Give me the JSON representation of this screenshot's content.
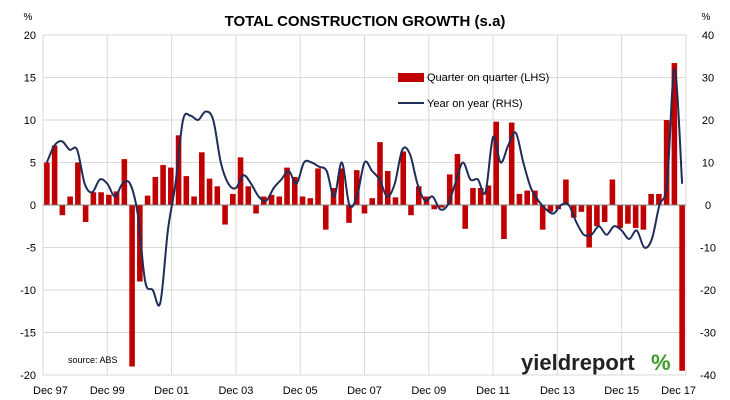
{
  "chart_data": {
    "type": "bar",
    "title": "TOTAL CONSTRUCTION GROWTH (s.a)",
    "left_unit": "%",
    "right_unit": "%",
    "ylim_left": [
      -20,
      20
    ],
    "ylim_right": [
      -40,
      40
    ],
    "left_ticks": [
      "20",
      "15",
      "10",
      "5",
      "0",
      "-5",
      "-10",
      "-15",
      "-20"
    ],
    "right_ticks": [
      "40",
      "30",
      "20",
      "10",
      "0",
      "-10",
      "-20",
      "-30",
      "-40"
    ],
    "x_tick_labels": [
      "Dec 97",
      "Dec 99",
      "Dec 01",
      "Dec 03",
      "Dec 05",
      "Dec 07",
      "Dec 09",
      "Dec 11",
      "Dec 13",
      "Dec 15",
      "Dec 17"
    ],
    "grid": true,
    "legend_position": "top-right",
    "series": [
      {
        "name": "Quarter on quarter (LHS)",
        "type": "bar",
        "axis": "left",
        "color": "#c00000",
        "values": [
          5.0,
          7.0,
          -1.2,
          1.0,
          5.0,
          -2.0,
          1.5,
          1.5,
          1.2,
          1.6,
          5.4,
          -19.0,
          -9.0,
          1.1,
          3.3,
          4.7,
          4.4,
          8.2,
          3.4,
          1.0,
          6.2,
          3.1,
          2.2,
          -2.3,
          1.3,
          5.6,
          2.2,
          -1.0,
          1.0,
          1.2,
          1.0,
          4.4,
          3.3,
          1.0,
          0.8,
          4.3,
          -2.9,
          2.0,
          4.3,
          -2.1,
          4.1,
          -1.0,
          0.8,
          7.4,
          4.0,
          0.9,
          6.3,
          -1.2,
          2.2,
          1.0,
          -0.5,
          -0.3,
          3.6,
          6.0,
          -2.8,
          2.0,
          2.0,
          2.3,
          9.8,
          -4.0,
          9.7,
          1.3,
          1.7,
          1.7,
          -2.9,
          -0.8,
          -0.5,
          3.0,
          -1.5,
          -0.8,
          -5.0,
          -2.5,
          -2.0,
          3.0,
          -2.7,
          -2.2,
          -2.7,
          -2.9,
          1.3,
          1.3,
          10.0,
          16.7,
          -19.5
        ]
      },
      {
        "name": "Year on year (RHS)",
        "type": "line",
        "axis": "right",
        "color": "#1f2d5a",
        "values": [
          10.0,
          14.0,
          15.0,
          13.0,
          13.0,
          5.0,
          3.0,
          6.0,
          5.0,
          2.0,
          5.0,
          5.0,
          -2.0,
          -18.0,
          -20.0,
          -23.0,
          -6.0,
          5.0,
          20.0,
          21.0,
          20.0,
          22.0,
          20.0,
          10.0,
          5.0,
          4.0,
          7.0,
          5.0,
          2.0,
          1.0,
          4.0,
          6.0,
          8.0,
          5.0,
          10.0,
          10.0,
          9.0,
          8.0,
          2.0,
          10.0,
          0.0,
          2.0,
          10.0,
          8.0,
          6.0,
          2.0,
          5.0,
          13.0,
          12.0,
          5.0,
          1.0,
          2.0,
          -1.0,
          0.0,
          5.0,
          10.0,
          6.0,
          6.0,
          3.0,
          16.0,
          10.0,
          14.0,
          17.0,
          10.0,
          4.0,
          1.0,
          -1.0,
          -2.0,
          0.0,
          0.0,
          -4.0,
          -7.0,
          -7.0,
          -5.0,
          -7.0,
          -5.0,
          -6.0,
          -8.0,
          -6.0,
          -10.0,
          -8.0,
          0.0,
          5.0,
          32.0,
          5.0
        ]
      }
    ]
  },
  "legend": [
    {
      "label": "Quarter on quarter (LHS)",
      "kind": "bar",
      "color": "#c00000"
    },
    {
      "label": "Year on year (RHS)",
      "kind": "line",
      "color": "#1f2d5a"
    }
  ],
  "source_note": "source: ABS",
  "brand": {
    "text": "yieldreport",
    "pct": "%"
  }
}
